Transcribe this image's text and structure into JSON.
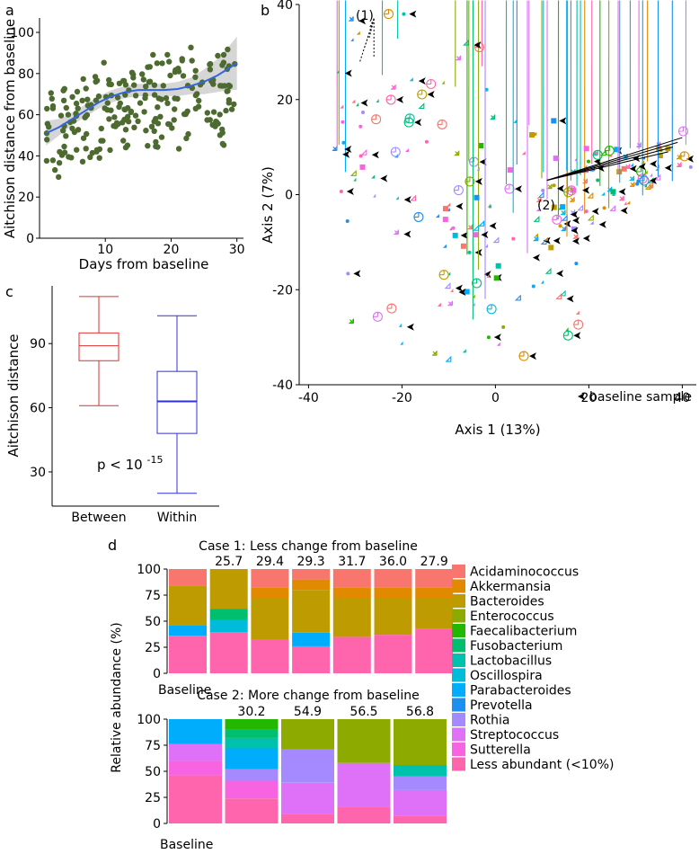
{
  "chart_data": [
    {
      "panel": "a",
      "type": "scatter",
      "xlabel": "Days from baseline",
      "ylabel": "Aitchison distance from baseline",
      "xlim": [
        0,
        31
      ],
      "ylim": [
        0,
        107
      ],
      "xticks": [
        10,
        20,
        30
      ],
      "yticks": [
        0,
        20,
        40,
        60,
        80,
        100
      ],
      "grid": false,
      "point_color": "#4d6b30",
      "smooth_color": "#3366dd",
      "band_color": "#bbbbbb",
      "smooth": {
        "x": [
          1,
          3,
          5,
          7,
          9,
          11,
          13,
          15,
          17,
          19,
          21,
          23,
          25,
          27,
          29,
          30
        ],
        "y": [
          51,
          54,
          58,
          62,
          66,
          69,
          71,
          72,
          72,
          72,
          72.5,
          74,
          76,
          79,
          83,
          85
        ],
        "lower": [
          45,
          50,
          55,
          59,
          63,
          66,
          68,
          69,
          69,
          69,
          69,
          70,
          70,
          71,
          72,
          72
        ],
        "upper": [
          57,
          58,
          61,
          65,
          69,
          72,
          74,
          75,
          75,
          75,
          76,
          78,
          82,
          87,
          94,
          98
        ]
      }
    },
    {
      "panel": "b",
      "type": "scatter",
      "xlabel": "Axis 1 (13%)",
      "ylabel": "Axis 2 (7%)",
      "xlim": [
        -42,
        43
      ],
      "ylim": [
        -40,
        40
      ],
      "xticks": [
        -40,
        -20,
        0,
        20,
        40
      ],
      "yticks": [
        -40,
        -20,
        0,
        20,
        40
      ],
      "grid": false,
      "annotations": [
        "(1)",
        "(2)"
      ],
      "legend_text": "baseline sample",
      "legend_position": "bottom-right",
      "group_labels_anchor": {
        "g1": [
          -26,
          37
        ],
        "g2": [
          11,
          3
        ]
      },
      "group_points": {
        "g1": [
          [
            -29,
            28
          ],
          [
            -28,
            31
          ],
          [
            -27,
            35
          ],
          [
            -26,
            29
          ],
          [
            -27,
            33
          ]
        ],
        "g2": [
          [
            40,
            12
          ],
          [
            39,
            11
          ],
          [
            38,
            10
          ],
          [
            37,
            9
          ]
        ]
      }
    },
    {
      "panel": "c",
      "type": "box",
      "ylabel": "Aitchison distance",
      "categories": [
        "Between",
        "Within"
      ],
      "yticks": [
        30,
        60,
        90
      ],
      "ylim": [
        14,
        117
      ],
      "colors": [
        "#e03030",
        "#3030d8"
      ],
      "boxes": [
        {
          "min": 61,
          "q1": 82,
          "median": 89,
          "q3": 95,
          "max": 112
        },
        {
          "min": 20,
          "q1": 48,
          "median": 63,
          "q3": 77,
          "max": 103
        }
      ],
      "annotation": {
        "text": "p < 10",
        "exponent": "-15"
      }
    },
    {
      "panel": "d",
      "type": "stacked-bar",
      "ylabel": "Relative abundance (%)",
      "yticks": [
        0,
        25,
        50,
        75,
        100
      ],
      "legend": [
        {
          "name": "Acidaminococcus",
          "color": "#f8766d"
        },
        {
          "name": "Akkermansia",
          "color": "#e18a00"
        },
        {
          "name": "Bacteroides",
          "color": "#be9c00"
        },
        {
          "name": "Enterococcus",
          "color": "#8caa00"
        },
        {
          "name": "Faecalibacterium",
          "color": "#24b700"
        },
        {
          "name": "Fusobacterium",
          "color": "#00be70"
        },
        {
          "name": "Lactobacillus",
          "color": "#00c1ab"
        },
        {
          "name": "Oscillospira",
          "color": "#00bbda"
        },
        {
          "name": "Parabacteroides",
          "color": "#00acfc"
        },
        {
          "name": "Prevotella",
          "color": "#1c8ff0"
        },
        {
          "name": "Rothia",
          "color": "#a58aff"
        },
        {
          "name": "Streptococcus",
          "color": "#df70f8"
        },
        {
          "name": "Sutterella",
          "color": "#f763e0"
        },
        {
          "name": "Less abundant (<10%)",
          "color": "#ff65ac"
        }
      ],
      "cases": [
        {
          "title": "Case 1: Less change from baseline",
          "baseline_label": "Baseline",
          "bar_labels": [
            "",
            "25.7",
            "29.4",
            "29.3",
            "31.7",
            "36.0",
            "27.9"
          ],
          "bars": [
            {
              "Less abundant (<10%)": 36,
              "Parabacteroides": 10,
              "Bacteroides": 38,
              "Acidaminococcus": 16
            },
            {
              "Less abundant (<10%)": 39,
              "Oscillospira": 12,
              "Fusobacterium": 11,
              "Bacteroides": 38
            },
            {
              "Less abundant (<10%)": 32,
              "Bacteroides": 40,
              "Akkermansia": 10,
              "Acidaminococcus": 18
            },
            {
              "Less abundant (<10%)": 26,
              "Parabacteroides": 13,
              "Bacteroides": 41,
              "Akkermansia": 10,
              "Acidaminococcus": 10
            },
            {
              "Less abundant (<10%)": 35,
              "Bacteroides": 37,
              "Akkermansia": 10,
              "Acidaminococcus": 18
            },
            {
              "Less abundant (<10%)": 37,
              "Bacteroides": 35,
              "Akkermansia": 10,
              "Acidaminococcus": 18
            },
            {
              "Less abundant (<10%)": 43,
              "Bacteroides": 29,
              "Akkermansia": 10,
              "Acidaminococcus": 18
            }
          ]
        },
        {
          "title": "Case 2: More change from baseline",
          "baseline_label": "Baseline",
          "bar_labels": [
            "",
            "30.2",
            "54.9",
            "56.5",
            "56.8"
          ],
          "bars": [
            {
              "Less abundant (<10%)": 46,
              "Sutterella": 14,
              "Streptococcus": 16,
              "Parabacteroides": 24
            },
            {
              "Less abundant (<10%)": 24,
              "Sutterella": 17,
              "Rothia": 11,
              "Parabacteroides": 20,
              "Lactobacillus": 10,
              "Fusobacterium": 8,
              "Faecalibacterium": 10
            },
            {
              "Less abundant (<10%)": 9,
              "Streptococcus": 30,
              "Rothia": 32,
              "Enterococcus": 29
            },
            {
              "Less abundant (<10%)": 16,
              "Streptococcus": 42,
              "Enterococcus": 42
            },
            {
              "Less abundant (<10%)": 7,
              "Streptococcus": 25,
              "Rothia": 13,
              "Lactobacillus": 11,
              "Enterococcus": 44
            }
          ]
        }
      ]
    }
  ],
  "panel_labels": {
    "a": "a",
    "b": "b",
    "c": "c",
    "d": "d"
  }
}
